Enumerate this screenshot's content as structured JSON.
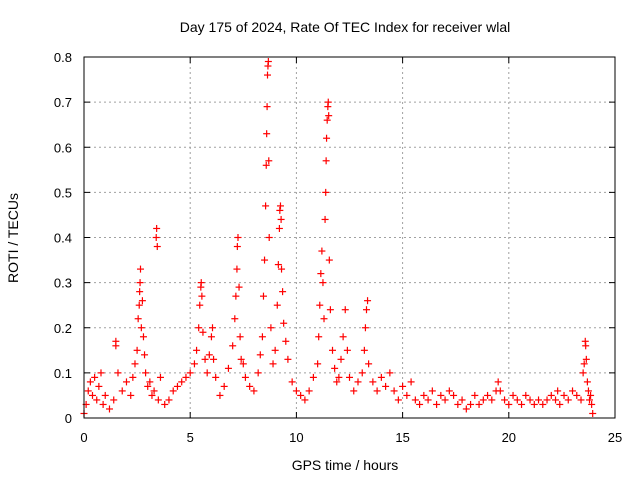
{
  "chart_data": {
    "type": "scatter",
    "title": "Day 175 of 2024, Rate Of TEC Index for receiver wlal",
    "xlabel": "GPS time / hours",
    "ylabel": "ROTI / TECUs",
    "xlim": [
      0,
      25
    ],
    "ylim": [
      0,
      0.8
    ],
    "xticks": [
      0,
      5,
      10,
      15,
      20,
      25
    ],
    "yticks": [
      0,
      0.1,
      0.2,
      0.3,
      0.4,
      0.5,
      0.6,
      0.7,
      0.8
    ],
    "xtick_labels": [
      "0",
      "5",
      "10",
      "15",
      "20",
      "25"
    ],
    "ytick_labels": [
      "0",
      "0.1",
      "0.2",
      "0.3",
      "0.4",
      "0.5",
      "0.6",
      "0.7",
      "0.8"
    ],
    "grid": true,
    "marker": "+",
    "marker_color": "#ff0000",
    "series": [
      {
        "name": "ROTI",
        "points": [
          [
            0.0,
            0.01
          ],
          [
            0.1,
            0.03
          ],
          [
            0.2,
            0.06
          ],
          [
            0.3,
            0.08
          ],
          [
            0.4,
            0.05
          ],
          [
            0.5,
            0.09
          ],
          [
            0.6,
            0.04
          ],
          [
            0.7,
            0.07
          ],
          [
            0.8,
            0.1
          ],
          [
            0.9,
            0.03
          ],
          [
            1.0,
            0.05
          ],
          [
            1.2,
            0.02
          ],
          [
            1.4,
            0.04
          ],
          [
            1.5,
            0.17
          ],
          [
            1.5,
            0.16
          ],
          [
            1.6,
            0.1
          ],
          [
            1.8,
            0.06
          ],
          [
            2.0,
            0.08
          ],
          [
            2.2,
            0.05
          ],
          [
            2.3,
            0.09
          ],
          [
            2.4,
            0.12
          ],
          [
            2.5,
            0.15
          ],
          [
            2.55,
            0.22
          ],
          [
            2.6,
            0.25
          ],
          [
            2.62,
            0.28
          ],
          [
            2.64,
            0.3
          ],
          [
            2.66,
            0.33
          ],
          [
            2.7,
            0.2
          ],
          [
            2.75,
            0.26
          ],
          [
            2.8,
            0.18
          ],
          [
            2.85,
            0.14
          ],
          [
            2.9,
            0.1
          ],
          [
            3.0,
            0.07
          ],
          [
            3.1,
            0.08
          ],
          [
            3.2,
            0.05
          ],
          [
            3.3,
            0.06
          ],
          [
            3.4,
            0.4
          ],
          [
            3.42,
            0.42
          ],
          [
            3.45,
            0.38
          ],
          [
            3.5,
            0.04
          ],
          [
            3.6,
            0.09
          ],
          [
            3.8,
            0.03
          ],
          [
            4.0,
            0.04
          ],
          [
            4.2,
            0.06
          ],
          [
            4.4,
            0.07
          ],
          [
            4.6,
            0.08
          ],
          [
            4.8,
            0.09
          ],
          [
            5.0,
            0.1
          ],
          [
            5.2,
            0.12
          ],
          [
            5.3,
            0.15
          ],
          [
            5.4,
            0.2
          ],
          [
            5.45,
            0.25
          ],
          [
            5.5,
            0.29
          ],
          [
            5.52,
            0.3
          ],
          [
            5.55,
            0.27
          ],
          [
            5.6,
            0.19
          ],
          [
            5.7,
            0.13
          ],
          [
            5.8,
            0.1
          ],
          [
            5.9,
            0.14
          ],
          [
            6.0,
            0.18
          ],
          [
            6.05,
            0.2
          ],
          [
            6.1,
            0.13
          ],
          [
            6.2,
            0.09
          ],
          [
            6.4,
            0.05
          ],
          [
            6.6,
            0.07
          ],
          [
            6.8,
            0.11
          ],
          [
            7.0,
            0.16
          ],
          [
            7.1,
            0.22
          ],
          [
            7.15,
            0.27
          ],
          [
            7.2,
            0.33
          ],
          [
            7.22,
            0.38
          ],
          [
            7.25,
            0.4
          ],
          [
            7.3,
            0.29
          ],
          [
            7.35,
            0.18
          ],
          [
            7.4,
            0.13
          ],
          [
            7.5,
            0.12
          ],
          [
            7.6,
            0.09
          ],
          [
            7.8,
            0.07
          ],
          [
            8.0,
            0.06
          ],
          [
            8.2,
            0.1
          ],
          [
            8.3,
            0.14
          ],
          [
            8.4,
            0.18
          ],
          [
            8.45,
            0.27
          ],
          [
            8.5,
            0.35
          ],
          [
            8.55,
            0.47
          ],
          [
            8.58,
            0.56
          ],
          [
            8.6,
            0.63
          ],
          [
            8.62,
            0.69
          ],
          [
            8.64,
            0.76
          ],
          [
            8.66,
            0.78
          ],
          [
            8.68,
            0.79
          ],
          [
            8.7,
            0.57
          ],
          [
            8.72,
            0.4
          ],
          [
            8.8,
            0.2
          ],
          [
            8.9,
            0.12
          ],
          [
            9.0,
            0.15
          ],
          [
            9.1,
            0.25
          ],
          [
            9.15,
            0.34
          ],
          [
            9.2,
            0.42
          ],
          [
            9.22,
            0.46
          ],
          [
            9.25,
            0.47
          ],
          [
            9.28,
            0.44
          ],
          [
            9.3,
            0.33
          ],
          [
            9.35,
            0.28
          ],
          [
            9.4,
            0.21
          ],
          [
            9.5,
            0.17
          ],
          [
            9.6,
            0.13
          ],
          [
            9.8,
            0.08
          ],
          [
            10.0,
            0.06
          ],
          [
            10.2,
            0.05
          ],
          [
            10.4,
            0.04
          ],
          [
            10.6,
            0.06
          ],
          [
            10.8,
            0.09
          ],
          [
            11.0,
            0.12
          ],
          [
            11.05,
            0.18
          ],
          [
            11.1,
            0.25
          ],
          [
            11.15,
            0.32
          ],
          [
            11.2,
            0.37
          ],
          [
            11.25,
            0.3
          ],
          [
            11.3,
            0.22
          ],
          [
            11.35,
            0.44
          ],
          [
            11.38,
            0.5
          ],
          [
            11.4,
            0.57
          ],
          [
            11.42,
            0.62
          ],
          [
            11.45,
            0.66
          ],
          [
            11.48,
            0.69
          ],
          [
            11.5,
            0.7
          ],
          [
            11.52,
            0.67
          ],
          [
            11.55,
            0.35
          ],
          [
            11.6,
            0.24
          ],
          [
            11.7,
            0.15
          ],
          [
            11.8,
            0.11
          ],
          [
            11.9,
            0.08
          ],
          [
            12.0,
            0.09
          ],
          [
            12.1,
            0.13
          ],
          [
            12.2,
            0.18
          ],
          [
            12.3,
            0.24
          ],
          [
            12.4,
            0.15
          ],
          [
            12.5,
            0.09
          ],
          [
            12.7,
            0.06
          ],
          [
            12.9,
            0.08
          ],
          [
            13.1,
            0.1
          ],
          [
            13.2,
            0.15
          ],
          [
            13.25,
            0.2
          ],
          [
            13.3,
            0.24
          ],
          [
            13.35,
            0.26
          ],
          [
            13.4,
            0.12
          ],
          [
            13.6,
            0.08
          ],
          [
            13.8,
            0.06
          ],
          [
            14.0,
            0.09
          ],
          [
            14.2,
            0.07
          ],
          [
            14.4,
            0.1
          ],
          [
            14.6,
            0.06
          ],
          [
            14.8,
            0.04
          ],
          [
            15.0,
            0.07
          ],
          [
            15.2,
            0.05
          ],
          [
            15.4,
            0.08
          ],
          [
            15.6,
            0.04
          ],
          [
            15.8,
            0.03
          ],
          [
            16.0,
            0.05
          ],
          [
            16.2,
            0.04
          ],
          [
            16.4,
            0.06
          ],
          [
            16.6,
            0.03
          ],
          [
            16.8,
            0.05
          ],
          [
            17.0,
            0.04
          ],
          [
            17.2,
            0.06
          ],
          [
            17.4,
            0.05
          ],
          [
            17.6,
            0.03
          ],
          [
            17.8,
            0.04
          ],
          [
            18.0,
            0.02
          ],
          [
            18.2,
            0.03
          ],
          [
            18.4,
            0.05
          ],
          [
            18.6,
            0.03
          ],
          [
            18.8,
            0.04
          ],
          [
            19.0,
            0.05
          ],
          [
            19.2,
            0.04
          ],
          [
            19.4,
            0.06
          ],
          [
            19.5,
            0.08
          ],
          [
            19.6,
            0.06
          ],
          [
            19.8,
            0.04
          ],
          [
            20.0,
            0.03
          ],
          [
            20.2,
            0.05
          ],
          [
            20.4,
            0.04
          ],
          [
            20.6,
            0.03
          ],
          [
            20.8,
            0.05
          ],
          [
            21.0,
            0.04
          ],
          [
            21.2,
            0.03
          ],
          [
            21.4,
            0.04
          ],
          [
            21.6,
            0.03
          ],
          [
            21.8,
            0.04
          ],
          [
            22.0,
            0.05
          ],
          [
            22.2,
            0.04
          ],
          [
            22.3,
            0.06
          ],
          [
            22.4,
            0.03
          ],
          [
            22.6,
            0.05
          ],
          [
            22.8,
            0.04
          ],
          [
            23.0,
            0.06
          ],
          [
            23.2,
            0.05
          ],
          [
            23.4,
            0.04
          ],
          [
            23.5,
            0.1
          ],
          [
            23.55,
            0.12
          ],
          [
            23.6,
            0.17
          ],
          [
            23.62,
            0.16
          ],
          [
            23.65,
            0.13
          ],
          [
            23.7,
            0.08
          ],
          [
            23.75,
            0.06
          ],
          [
            23.8,
            0.04
          ],
          [
            23.85,
            0.05
          ],
          [
            23.9,
            0.03
          ],
          [
            23.95,
            0.01
          ]
        ]
      }
    ]
  }
}
